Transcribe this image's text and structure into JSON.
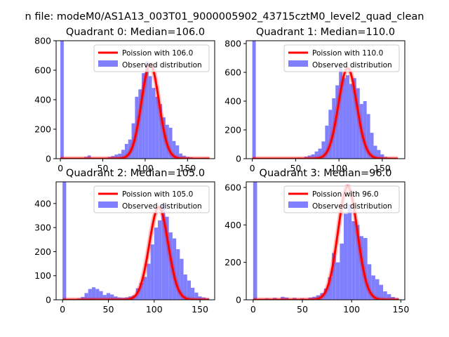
{
  "figure": {
    "suptitle": "n file: modeM0/AS1A13_003T01_9000005902_43715cztM0_level2_quad_clean"
  },
  "chart_data": [
    {
      "type": "bar",
      "title": "Quadrant 0: Median=106.0",
      "xlim": [
        -5,
        182
      ],
      "ylim": [
        0,
        800
      ],
      "xticks": [
        0,
        50,
        100,
        150
      ],
      "yticks": [
        0,
        200,
        400,
        600,
        800
      ],
      "legend": {
        "placement": "top-right",
        "line_label": "Poission with 106.0",
        "bar_label": "Observed distribution"
      },
      "colors": {
        "bar": "#8080ff",
        "line": "#ff0000"
      },
      "bin_width": 4,
      "bins": [
        [
          0,
          2000
        ],
        [
          28,
          12
        ],
        [
          32,
          22
        ],
        [
          56,
          12
        ],
        [
          60,
          18
        ],
        [
          64,
          28
        ],
        [
          68,
          34
        ],
        [
          72,
          60
        ],
        [
          76,
          100
        ],
        [
          80,
          130
        ],
        [
          84,
          240
        ],
        [
          88,
          420
        ],
        [
          92,
          470
        ],
        [
          96,
          580
        ],
        [
          100,
          660
        ],
        [
          104,
          560
        ],
        [
          108,
          480
        ],
        [
          112,
          420
        ],
        [
          116,
          370
        ],
        [
          120,
          280
        ],
        [
          124,
          230
        ],
        [
          128,
          210
        ],
        [
          132,
          120
        ],
        [
          136,
          90
        ],
        [
          140,
          35
        ],
        [
          144,
          20
        ],
        [
          148,
          12
        ],
        [
          152,
          10
        ],
        [
          160,
          6
        ]
      ],
      "poisson_mean": 106.0,
      "poisson_peak": 640,
      "x_range": [
        0,
        176
      ]
    },
    {
      "type": "bar",
      "title": "Quadrant 1: Median=110.0",
      "xlim": [
        -7,
        176
      ],
      "ylim": [
        0,
        820
      ],
      "xticks": [
        0,
        50,
        100,
        150
      ],
      "yticks": [
        0,
        200,
        400,
        600,
        800
      ],
      "legend": {
        "placement": "top-right",
        "line_label": "Poission with 110.0",
        "bar_label": "Observed distribution"
      },
      "colors": {
        "bar": "#8080ff",
        "line": "#ff0000"
      },
      "bin_width": 4,
      "bins": [
        [
          0,
          2000
        ],
        [
          52,
          8
        ],
        [
          60,
          14
        ],
        [
          64,
          22
        ],
        [
          68,
          30
        ],
        [
          72,
          50
        ],
        [
          76,
          70
        ],
        [
          80,
          120
        ],
        [
          84,
          230
        ],
        [
          88,
          340
        ],
        [
          92,
          420
        ],
        [
          96,
          510
        ],
        [
          100,
          640
        ],
        [
          104,
          560
        ],
        [
          108,
          580
        ],
        [
          112,
          520
        ],
        [
          116,
          560
        ],
        [
          120,
          490
        ],
        [
          124,
          380
        ],
        [
          128,
          400
        ],
        [
          132,
          310
        ],
        [
          136,
          180
        ],
        [
          140,
          90
        ],
        [
          144,
          60
        ],
        [
          148,
          30
        ],
        [
          152,
          12
        ],
        [
          156,
          8
        ]
      ],
      "poisson_mean": 110.0,
      "poisson_peak": 630,
      "x_range": [
        0,
        168
      ]
    },
    {
      "type": "bar",
      "title": "Quadrant 2: Median=105.0",
      "xlim": [
        -7,
        166
      ],
      "ylim": [
        0,
        490
      ],
      "xticks": [
        0,
        50,
        100,
        150
      ],
      "yticks": [
        0,
        100,
        200,
        300,
        400
      ],
      "legend": {
        "placement": "top-right",
        "line_label": "Poission with 105.0",
        "bar_label": "Observed distribution"
      },
      "colors": {
        "bar": "#8080ff",
        "line": "#ff0000"
      },
      "bin_width": 4,
      "bins": [
        [
          0,
          2000
        ],
        [
          16,
          6
        ],
        [
          20,
          12
        ],
        [
          24,
          28
        ],
        [
          28,
          45
        ],
        [
          32,
          52
        ],
        [
          36,
          45
        ],
        [
          40,
          36
        ],
        [
          44,
          20
        ],
        [
          48,
          28
        ],
        [
          52,
          22
        ],
        [
          56,
          14
        ],
        [
          60,
          10
        ],
        [
          64,
          8
        ],
        [
          68,
          10
        ],
        [
          72,
          14
        ],
        [
          76,
          18
        ],
        [
          80,
          48
        ],
        [
          84,
          70
        ],
        [
          88,
          95
        ],
        [
          92,
          150
        ],
        [
          96,
          230
        ],
        [
          100,
          300
        ],
        [
          104,
          330
        ],
        [
          108,
          400
        ],
        [
          112,
          345
        ],
        [
          116,
          280
        ],
        [
          120,
          255
        ],
        [
          124,
          210
        ],
        [
          128,
          170
        ],
        [
          132,
          105
        ],
        [
          136,
          80
        ],
        [
          140,
          50
        ],
        [
          144,
          30
        ],
        [
          148,
          14
        ],
        [
          152,
          10
        ],
        [
          156,
          6
        ]
      ],
      "poisson_mean": 105.0,
      "poisson_peak": 385,
      "x_range": [
        0,
        160
      ]
    },
    {
      "type": "bar",
      "title": "Quadrant 3: Median=96.0",
      "xlim": [
        -7,
        154
      ],
      "ylim": [
        0,
        630
      ],
      "xticks": [
        0,
        50,
        100,
        150
      ],
      "yticks": [
        0,
        200,
        400,
        600
      ],
      "legend": {
        "placement": "top-right",
        "line_label": "Poission with 96.0",
        "bar_label": "Observed distribution"
      },
      "colors": {
        "bar": "#8080ff",
        "line": "#ff0000"
      },
      "bin_width": 4,
      "bins": [
        [
          0,
          2000
        ],
        [
          12,
          8
        ],
        [
          20,
          10
        ],
        [
          28,
          16
        ],
        [
          32,
          12
        ],
        [
          40,
          10
        ],
        [
          48,
          8
        ],
        [
          56,
          12
        ],
        [
          60,
          16
        ],
        [
          64,
          24
        ],
        [
          68,
          36
        ],
        [
          72,
          60
        ],
        [
          76,
          120
        ],
        [
          80,
          250
        ],
        [
          84,
          200
        ],
        [
          88,
          300
        ],
        [
          92,
          460
        ],
        [
          96,
          510
        ],
        [
          100,
          420
        ],
        [
          104,
          400
        ],
        [
          108,
          340
        ],
        [
          112,
          330
        ],
        [
          116,
          190
        ],
        [
          120,
          130
        ],
        [
          124,
          110
        ],
        [
          128,
          80
        ],
        [
          132,
          45
        ],
        [
          136,
          30
        ],
        [
          140,
          15
        ],
        [
          144,
          8
        ]
      ],
      "poisson_mean": 96.0,
      "poisson_peak": 605,
      "x_range": [
        0,
        148
      ]
    }
  ]
}
